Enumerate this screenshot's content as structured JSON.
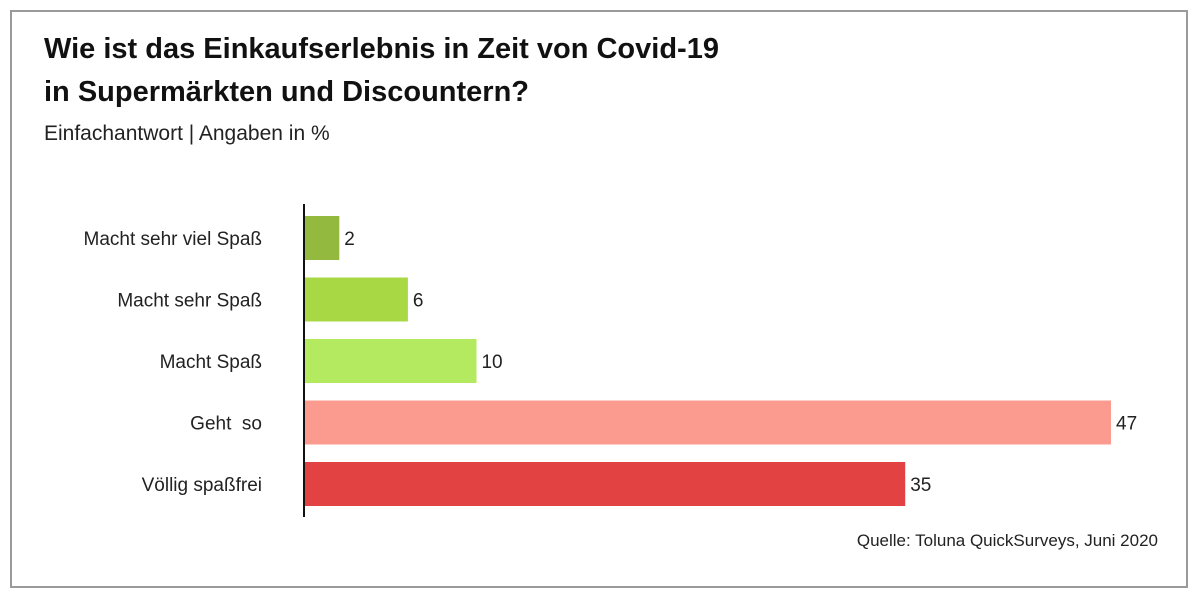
{
  "chart_data": {
    "type": "bar",
    "orientation": "horizontal",
    "title_line1": "Wie ist das Einkaufserlebnis in Zeit von Covid-19",
    "title_line2": "in Supermärkten und Discountern?",
    "subtitle": "Einfachantwort | Angaben in %",
    "source": "Quelle: Toluna QuickSurveys, Juni 2020",
    "categories": [
      "Macht sehr viel Spaß",
      "Macht sehr Spaß",
      "Macht Spaß",
      "Geht  so",
      "Völlig spaßfrei"
    ],
    "values": [
      2,
      6,
      10,
      47,
      35
    ],
    "colors": [
      "#94b93f",
      "#a8d843",
      "#b4ea5f",
      "#fb9b8f",
      "#e34242"
    ],
    "xlim": [
      0,
      47
    ],
    "grid": false,
    "legend": "none"
  }
}
